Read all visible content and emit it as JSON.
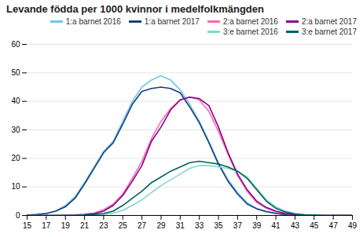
{
  "chart_data": {
    "type": "line",
    "title": "Levande födda per 1000 kvinnor i medelfolkmängden",
    "x": [
      15,
      16,
      17,
      18,
      19,
      20,
      21,
      22,
      23,
      24,
      25,
      26,
      27,
      28,
      29,
      30,
      31,
      32,
      33,
      34,
      35,
      36,
      37,
      38,
      39,
      40,
      41,
      42,
      43,
      44,
      45,
      46,
      47,
      48,
      49
    ],
    "series": [
      {
        "name": "1:a barnet 2016",
        "color": "#6DC8E8",
        "values": [
          0.1,
          0.3,
          0.7,
          1.5,
          3.5,
          6.5,
          11.5,
          17.0,
          22.5,
          26.0,
          33.0,
          40.0,
          45.0,
          47.5,
          49.0,
          47.5,
          44.0,
          39.0,
          33.0,
          26.0,
          18.5,
          12.5,
          8.0,
          4.5,
          2.5,
          1.5,
          0.8,
          0.4,
          0.2,
          0.1,
          0.1,
          0.0,
          0.0,
          0.0,
          0.0
        ]
      },
      {
        "name": "1:a barnet 2017",
        "color": "#1A3D7C",
        "values": [
          0.1,
          0.3,
          0.7,
          1.5,
          3.0,
          6.0,
          11.0,
          16.5,
          22.0,
          25.5,
          32.0,
          39.0,
          43.5,
          44.5,
          45.0,
          44.5,
          43.0,
          38.0,
          32.5,
          25.5,
          18.0,
          12.0,
          7.5,
          4.0,
          2.3,
          1.3,
          0.7,
          0.3,
          0.2,
          0.1,
          0.0,
          0.0,
          0.0,
          0.0,
          0.0
        ]
      },
      {
        "name": "2:a barnet 2016",
        "color": "#FF69B4",
        "values": [
          0.0,
          0.0,
          0.0,
          0.0,
          0.1,
          0.2,
          0.4,
          0.8,
          2.0,
          4.0,
          7.5,
          13.0,
          19.0,
          27.0,
          33.0,
          37.5,
          40.5,
          41.5,
          40.5,
          36.5,
          29.5,
          21.5,
          14.0,
          8.5,
          4.5,
          2.5,
          1.3,
          0.6,
          0.3,
          0.1,
          0.1,
          0.0,
          0.0,
          0.0,
          0.0
        ]
      },
      {
        "name": "2:a barnet 2017",
        "color": "#8B008B",
        "values": [
          0.0,
          0.0,
          0.0,
          0.0,
          0.0,
          0.1,
          0.3,
          0.6,
          1.5,
          3.5,
          7.0,
          12.0,
          17.5,
          26.0,
          31.0,
          37.0,
          40.5,
          41.5,
          41.0,
          38.5,
          31.0,
          22.0,
          14.5,
          9.0,
          5.0,
          2.8,
          1.5,
          0.7,
          0.3,
          0.1,
          0.1,
          0.0,
          0.0,
          0.0,
          0.0
        ]
      },
      {
        "name": "3:e barnet 2016",
        "color": "#80D8C8",
        "values": [
          0.0,
          0.0,
          0.0,
          0.0,
          0.0,
          0.0,
          0.1,
          0.2,
          0.4,
          0.8,
          1.8,
          3.5,
          5.5,
          8.0,
          10.5,
          12.5,
          14.5,
          16.5,
          17.5,
          17.5,
          17.0,
          16.5,
          15.5,
          13.5,
          9.5,
          5.5,
          3.0,
          1.5,
          0.7,
          0.3,
          0.1,
          0.0,
          0.0,
          0.0,
          0.0
        ]
      },
      {
        "name": "3:e barnet 2017",
        "color": "#006060",
        "values": [
          0.0,
          0.0,
          0.0,
          0.0,
          0.0,
          0.0,
          0.1,
          0.3,
          0.7,
          1.5,
          3.5,
          6.0,
          8.5,
          11.5,
          13.5,
          15.5,
          17.0,
          18.5,
          19.0,
          18.5,
          18.0,
          17.0,
          15.5,
          13.0,
          9.0,
          5.0,
          2.5,
          1.2,
          0.5,
          0.2,
          0.1,
          0.0,
          0.0,
          0.0,
          0.0
        ]
      }
    ],
    "xlim": [
      15,
      49
    ],
    "ylim": [
      0,
      60
    ],
    "xticks": [
      15,
      17,
      19,
      21,
      23,
      25,
      27,
      29,
      31,
      33,
      35,
      37,
      39,
      41,
      43,
      45,
      47,
      49
    ],
    "yticks": [
      0,
      10,
      20,
      30,
      40,
      50,
      60
    ],
    "grid": true,
    "legend": "upper right"
  }
}
